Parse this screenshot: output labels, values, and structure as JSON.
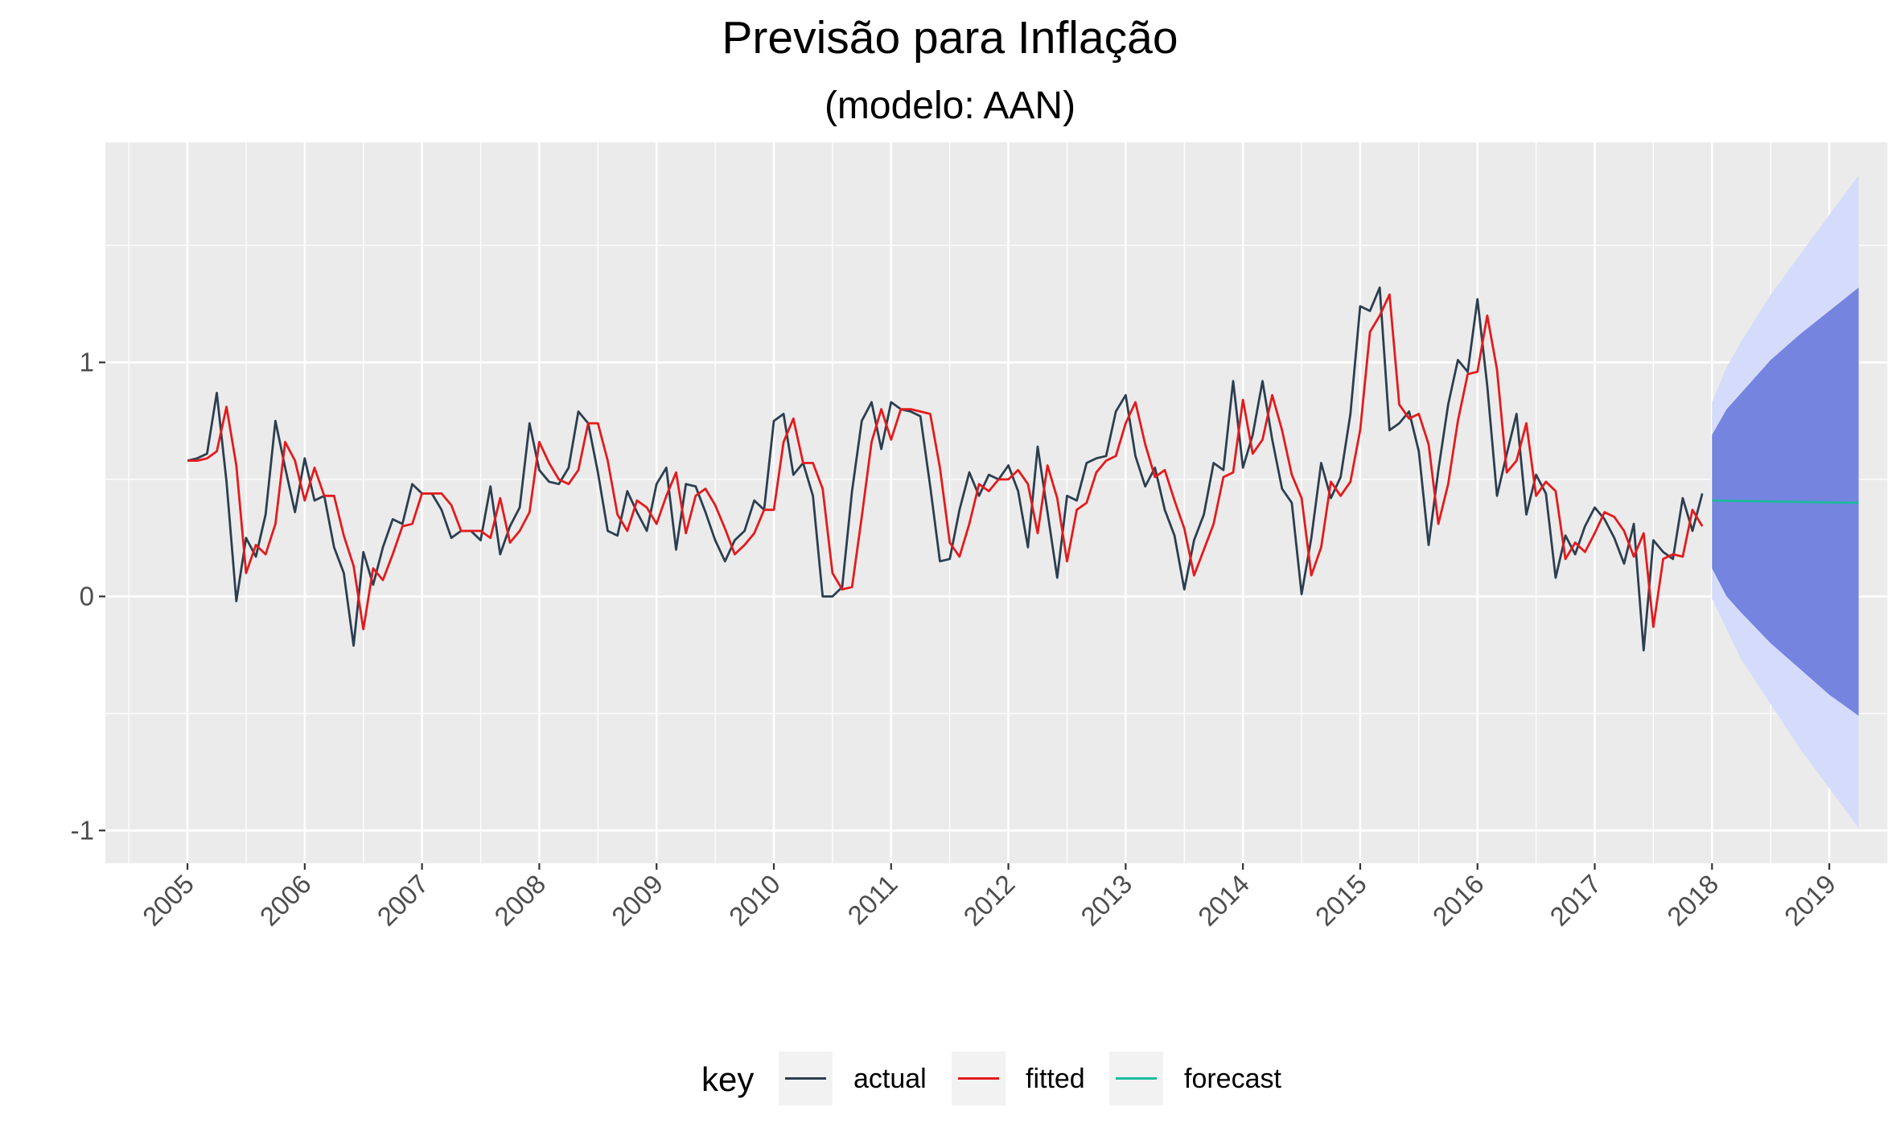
{
  "chart_data": {
    "type": "line",
    "title": "Previsão para Inflação",
    "subtitle": "(modelo: AAN)",
    "xlabel": "",
    "ylabel": "",
    "xlim": [
      2004.3,
      2019.5
    ],
    "ylim": [
      -1.14,
      1.94
    ],
    "x_ticks": [
      2005,
      2006,
      2007,
      2008,
      2009,
      2010,
      2011,
      2012,
      2013,
      2014,
      2015,
      2016,
      2017,
      2018,
      2019
    ],
    "x_tick_labels": [
      "2005",
      "2006",
      "2007",
      "2008",
      "2009",
      "2010",
      "2011",
      "2012",
      "2013",
      "2014",
      "2015",
      "2016",
      "2017",
      "2018",
      "2019"
    ],
    "y_ticks": [
      -1,
      0,
      1
    ],
    "y_tick_labels": [
      "-1",
      "0",
      "1"
    ],
    "grid": true,
    "background": "#ebebeb",
    "legend": {
      "title": "key",
      "position": "bottom",
      "entries": [
        "actual",
        "fitted",
        "forecast"
      ]
    },
    "series": [
      {
        "name": "actual",
        "color": "#2c3e50",
        "start": 2005.0,
        "step": 0.08333333,
        "values": [
          0.58,
          0.59,
          0.61,
          0.87,
          0.49,
          -0.02,
          0.25,
          0.17,
          0.35,
          0.75,
          0.55,
          0.36,
          0.59,
          0.41,
          0.43,
          0.21,
          0.1,
          -0.21,
          0.19,
          0.05,
          0.21,
          0.33,
          0.31,
          0.48,
          0.44,
          0.44,
          0.37,
          0.25,
          0.28,
          0.28,
          0.24,
          0.47,
          0.18,
          0.3,
          0.38,
          0.74,
          0.54,
          0.49,
          0.48,
          0.55,
          0.79,
          0.74,
          0.53,
          0.28,
          0.26,
          0.45,
          0.36,
          0.28,
          0.48,
          0.55,
          0.2,
          0.48,
          0.47,
          0.36,
          0.24,
          0.15,
          0.24,
          0.28,
          0.41,
          0.37,
          0.75,
          0.78,
          0.52,
          0.57,
          0.43,
          0.0,
          0.0,
          0.04,
          0.45,
          0.75,
          0.83,
          0.63,
          0.83,
          0.8,
          0.79,
          0.77,
          0.47,
          0.15,
          0.16,
          0.37,
          0.53,
          0.43,
          0.52,
          0.5,
          0.56,
          0.45,
          0.21,
          0.64,
          0.36,
          0.08,
          0.43,
          0.41,
          0.57,
          0.59,
          0.6,
          0.79,
          0.86,
          0.6,
          0.47,
          0.55,
          0.37,
          0.26,
          0.03,
          0.24,
          0.35,
          0.57,
          0.54,
          0.92,
          0.55,
          0.69,
          0.92,
          0.67,
          0.46,
          0.4,
          0.01,
          0.25,
          0.57,
          0.42,
          0.51,
          0.78,
          1.24,
          1.22,
          1.32,
          0.71,
          0.74,
          0.79,
          0.62,
          0.22,
          0.54,
          0.82,
          1.01,
          0.96,
          1.27,
          0.9,
          0.43,
          0.61,
          0.78,
          0.35,
          0.52,
          0.44,
          0.08,
          0.26,
          0.18,
          0.3,
          0.38,
          0.33,
          0.25,
          0.14,
          0.31,
          -0.23,
          0.24,
          0.19,
          0.16,
          0.42,
          0.28,
          0.44
        ]
      },
      {
        "name": "fitted",
        "color": "#e41a1c",
        "start": 2005.0,
        "step": 0.08333333,
        "values": [
          0.58,
          0.58,
          0.59,
          0.62,
          0.81,
          0.56,
          0.1,
          0.22,
          0.18,
          0.31,
          0.66,
          0.58,
          0.41,
          0.55,
          0.43,
          0.43,
          0.26,
          0.13,
          -0.14,
          0.12,
          0.07,
          0.18,
          0.3,
          0.31,
          0.44,
          0.44,
          0.44,
          0.39,
          0.28,
          0.28,
          0.28,
          0.25,
          0.42,
          0.23,
          0.28,
          0.36,
          0.66,
          0.57,
          0.5,
          0.48,
          0.54,
          0.74,
          0.74,
          0.58,
          0.35,
          0.28,
          0.41,
          0.38,
          0.31,
          0.43,
          0.53,
          0.27,
          0.43,
          0.46,
          0.39,
          0.29,
          0.18,
          0.22,
          0.27,
          0.37,
          0.37,
          0.66,
          0.76,
          0.57,
          0.57,
          0.46,
          0.1,
          0.03,
          0.04,
          0.34,
          0.66,
          0.8,
          0.67,
          0.8,
          0.8,
          0.79,
          0.78,
          0.55,
          0.23,
          0.17,
          0.31,
          0.48,
          0.45,
          0.5,
          0.5,
          0.54,
          0.48,
          0.27,
          0.56,
          0.42,
          0.15,
          0.37,
          0.4,
          0.53,
          0.58,
          0.6,
          0.74,
          0.83,
          0.65,
          0.51,
          0.54,
          0.41,
          0.29,
          0.09,
          0.2,
          0.31,
          0.51,
          0.53,
          0.84,
          0.61,
          0.67,
          0.86,
          0.71,
          0.52,
          0.42,
          0.09,
          0.21,
          0.49,
          0.43,
          0.49,
          0.71,
          1.13,
          1.2,
          1.29,
          0.82,
          0.76,
          0.78,
          0.65,
          0.31,
          0.48,
          0.75,
          0.95,
          0.96,
          1.2,
          0.97,
          0.53,
          0.58,
          0.74,
          0.43,
          0.49,
          0.45,
          0.16,
          0.23,
          0.19,
          0.27,
          0.36,
          0.34,
          0.28,
          0.17,
          0.27,
          -0.13,
          0.16,
          0.18,
          0.17,
          0.37,
          0.3
        ]
      },
      {
        "name": "forecast",
        "color": "#1abc9c",
        "x": [
          2018.0,
          2019.25
        ],
        "values": [
          0.41,
          0.4
        ]
      }
    ],
    "bands": [
      {
        "level": 95,
        "color": "#d5dbfa",
        "x": [
          2018.0,
          2018.125,
          2018.25,
          2018.5,
          2018.75,
          2019.0,
          2019.25
        ],
        "lower": [
          -0.01,
          -0.14,
          -0.27,
          -0.46,
          -0.65,
          -0.82,
          -0.99
        ],
        "upper": [
          0.83,
          0.98,
          1.09,
          1.29,
          1.46,
          1.63,
          1.8
        ]
      },
      {
        "level": 80,
        "color": "#7484df",
        "x": [
          2018.0,
          2018.125,
          2018.25,
          2018.5,
          2018.75,
          2019.0,
          2019.25
        ],
        "lower": [
          0.12,
          0.0,
          -0.07,
          -0.2,
          -0.31,
          -0.42,
          -0.51
        ],
        "upper": [
          0.69,
          0.8,
          0.87,
          1.01,
          1.12,
          1.22,
          1.32
        ]
      }
    ]
  }
}
